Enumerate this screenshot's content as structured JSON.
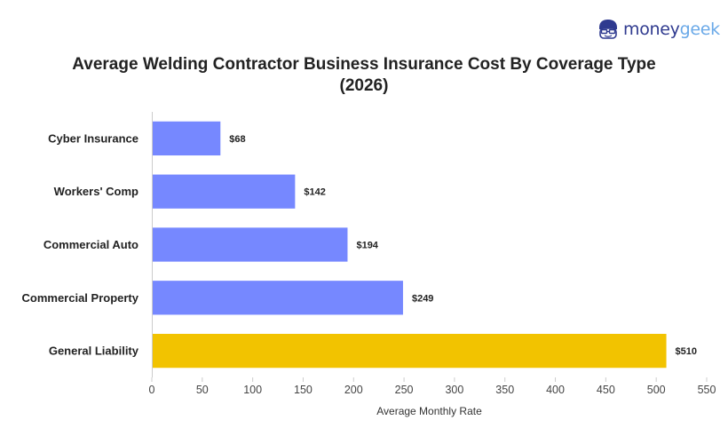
{
  "brand": {
    "name_part1": "money",
    "name_part2": "geek"
  },
  "colors": {
    "bar": "#7688ff",
    "highlight": "#f2c300",
    "axis": "#cccccc"
  },
  "chart_data": {
    "type": "bar",
    "orientation": "horizontal",
    "title": "Average Welding Contractor Business Insurance Cost By Coverage Type (2026)",
    "title_line1": "Average Welding Contractor Business Insurance Cost By Coverage Type",
    "title_line2": "(2026)",
    "xlabel": "Average Monthly Rate",
    "ylabel": "",
    "xlim": [
      0,
      550
    ],
    "xticks": [
      0,
      50,
      100,
      150,
      200,
      250,
      300,
      350,
      400,
      450,
      500,
      550
    ],
    "grid": false,
    "categories": [
      "Cyber Insurance",
      "Workers' Comp",
      "Commercial Auto",
      "Commercial Property",
      "General Liability"
    ],
    "values": [
      68,
      142,
      194,
      249,
      510
    ],
    "value_labels": [
      "$68",
      "$142",
      "$194",
      "$249",
      "$510"
    ],
    "highlighted": "General Liability"
  }
}
